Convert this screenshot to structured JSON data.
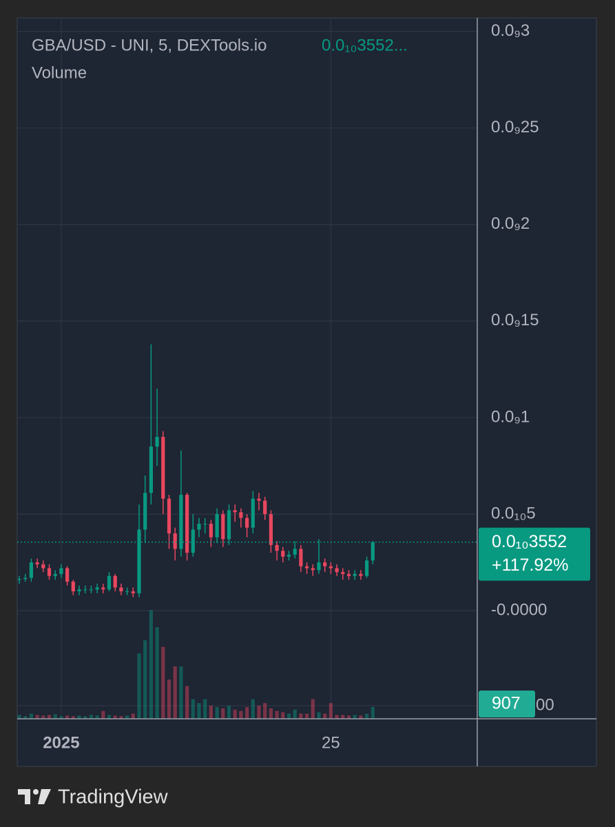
{
  "chart_data": {
    "type": "candlestick",
    "title": "GBA/USD - UNI, 5, DEXTools.io",
    "title_price": "0.0₁₀3552...",
    "volume_title": "Volume",
    "price_label": "0.0₁₀3552",
    "change_label": "+117.92%",
    "up_color": "#089981",
    "down_color": "#e8475f",
    "grid": true,
    "categories": [
      null,
      null,
      null,
      null,
      null,
      null,
      null,
      "2025",
      null,
      null,
      null,
      null,
      null,
      null,
      null,
      null,
      null,
      null,
      null,
      null,
      null,
      null,
      null,
      null,
      null,
      null,
      null,
      null,
      null,
      null,
      null,
      null,
      null,
      null,
      null,
      null,
      null,
      null,
      null,
      null,
      null,
      null,
      null,
      null,
      null,
      null,
      null,
      null,
      null,
      null,
      null,
      null,
      "25",
      null,
      null,
      null,
      null,
      null,
      null,
      null
    ],
    "open": [
      1.6e-11,
      1.64e-11,
      1.7e-11,
      2.5e-11,
      2.4e-11,
      2.2e-11,
      1.8e-11,
      1.9e-11,
      2.2e-11,
      1.5e-11,
      1e-11,
      1.1e-11,
      1.1e-11,
      1.1e-11,
      1.2e-11,
      1.1e-11,
      1.8e-11,
      1.2e-11,
      1e-11,
      1e-11,
      9e-12,
      4.2e-11,
      6.1e-11,
      8.5e-11,
      9e-11,
      5.8e-11,
      4e-11,
      3.2e-11,
      6e-11,
      3e-11,
      4.2e-11,
      4.5e-11,
      4.5e-11,
      3.8e-11,
      5e-11,
      3.7e-11,
      5.2e-11,
      5.1e-11,
      4.8e-11,
      4.3e-11,
      5.8e-11,
      5.7e-11,
      5e-11,
      3.4e-11,
      3.1e-11,
      2.8e-11,
      2.9e-11,
      3.2e-11,
      2.3e-11,
      2.2e-11,
      2.1e-11,
      2.5e-11,
      2.3e-11,
      2.2e-11,
      2e-11,
      1.9e-11,
      1.8e-11,
      1.9e-11,
      1.8e-11,
      2.6e-11
    ],
    "high": [
      1.8e-11,
      1.9e-11,
      2.7e-11,
      2.7e-11,
      2.6e-11,
      2.4e-11,
      2.1e-11,
      2.4e-11,
      2.3e-11,
      1.6e-11,
      1.3e-11,
      1.3e-11,
      1.3e-11,
      1.4e-11,
      1.4e-11,
      2e-11,
      1.9e-11,
      1.4e-11,
      1.2e-11,
      1.2e-11,
      5.5e-11,
      7e-11,
      1.38e-10,
      1.15e-10,
      9.3e-11,
      6e-11,
      4.3e-11,
      8.3e-11,
      6.1e-11,
      5e-11,
      4.8e-11,
      4.8e-11,
      4.7e-11,
      5.3e-11,
      5.2e-11,
      5.5e-11,
      5.5e-11,
      5.3e-11,
      5e-11,
      6.2e-11,
      6.1e-11,
      5.9e-11,
      5.2e-11,
      3.6e-11,
      3.3e-11,
      3.1e-11,
      3.6e-11,
      3.4e-11,
      2.5e-11,
      2.4e-11,
      3.7e-11,
      2.7e-11,
      2.5e-11,
      2.4e-11,
      2.2e-11,
      2.1e-11,
      2.1e-11,
      2.1e-11,
      2.8e-11,
      3.6e-11
    ],
    "low": [
      1.4e-11,
      1.5e-11,
      1.5e-11,
      2.2e-11,
      2e-11,
      1.6e-11,
      1.6e-11,
      1.7e-11,
      1.3e-11,
      8e-12,
      8e-12,
      9e-12,
      9e-12,
      9e-12,
      9e-12,
      1e-11,
      1e-11,
      8e-12,
      8e-12,
      7e-12,
      7e-12,
      3.5e-11,
      5.5e-11,
      7.5e-11,
      5e-11,
      3.2e-11,
      2.6e-11,
      2.8e-11,
      2.6e-11,
      2.8e-11,
      3.8e-11,
      4e-11,
      3.3e-11,
      3.5e-11,
      3.3e-11,
      3.4e-11,
      4.6e-11,
      4.3e-11,
      3.8e-11,
      4e-11,
      5.2e-11,
      4.7e-11,
      3e-11,
      2.6e-11,
      2.5e-11,
      2.6e-11,
      2.7e-11,
      2e-11,
      1.9e-11,
      1.8e-11,
      1.9e-11,
      2e-11,
      1.9e-11,
      1.8e-11,
      1.6e-11,
      1.6e-11,
      1.6e-11,
      1.6e-11,
      1.7e-11,
      2.4e-11
    ],
    "close": [
      1.64e-11,
      1.7e-11,
      2.5e-11,
      2.4e-11,
      2.2e-11,
      1.8e-11,
      1.9e-11,
      2.2e-11,
      1.5e-11,
      1e-11,
      1.1e-11,
      1.1e-11,
      1.1e-11,
      1.2e-11,
      1.1e-11,
      1.8e-11,
      1.2e-11,
      1e-11,
      1e-11,
      9e-12,
      4.2e-11,
      6.1e-11,
      8.5e-11,
      9e-11,
      5.8e-11,
      4e-11,
      3.2e-11,
      6e-11,
      3e-11,
      4.2e-11,
      4.5e-11,
      4.5e-11,
      3.8e-11,
      5e-11,
      3.7e-11,
      5.2e-11,
      5.1e-11,
      4.8e-11,
      4.3e-11,
      5.8e-11,
      5.7e-11,
      5e-11,
      3.4e-11,
      3.1e-11,
      2.8e-11,
      2.9e-11,
      3.2e-11,
      2.3e-11,
      2.2e-11,
      2.1e-11,
      2.5e-11,
      2.3e-11,
      2.2e-11,
      2e-11,
      1.9e-11,
      1.8e-11,
      1.9e-11,
      1.8e-11,
      2.6e-11,
      3.552e-11
    ],
    "volume": [
      300,
      200,
      400,
      300,
      250,
      300,
      350,
      200,
      250,
      200,
      250,
      200,
      300,
      250,
      600,
      300,
      250,
      200,
      250,
      400,
      5000,
      6000,
      8300,
      7000,
      5500,
      3000,
      4000,
      4000,
      2500,
      1500,
      1200,
      1500,
      1000,
      900,
      800,
      1000,
      700,
      600,
      900,
      1500,
      1000,
      1200,
      800,
      600,
      500,
      400,
      700,
      400,
      400,
      1500,
      500,
      400,
      1200,
      300,
      300,
      250,
      300,
      250,
      400,
      907
    ],
    "ylim": [
      -5.6e-11,
      3.07e-10
    ],
    "yticks": [
      {
        "value": 3e-10,
        "label": "0.0₉3"
      },
      {
        "value": 2.5e-10,
        "label": "0.0₉25"
      },
      {
        "value": 2e-10,
        "label": "0.0₉2"
      },
      {
        "value": 1.5e-10,
        "label": "0.0₉15"
      },
      {
        "value": 1e-10,
        "label": "0.0₉1"
      },
      {
        "value": 5e-11,
        "label": "0.0₁₀5"
      },
      {
        "value": 0,
        "label": "-0.0000"
      }
    ],
    "volume_ylim": [
      0,
      9000
    ],
    "volume_yticks": [
      {
        "value": 1000,
        "label": "00"
      }
    ]
  },
  "footer": {
    "brand": "TradingView"
  }
}
